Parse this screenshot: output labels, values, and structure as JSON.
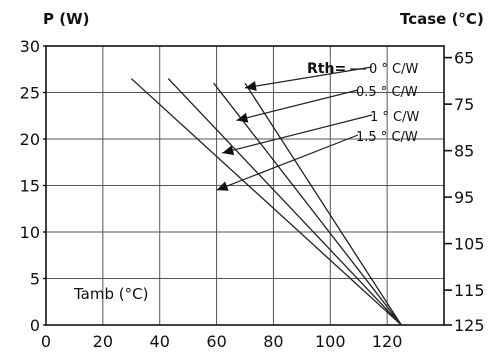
{
  "chart_data": {
    "type": "line",
    "title": "",
    "ylabel": "P (W)",
    "y2label": "Tcase (°C)",
    "xlabel": "Tamb (°C)",
    "xlim": [
      0,
      140
    ],
    "ylim": [
      0,
      30
    ],
    "x_ticks": [
      0,
      20,
      40,
      60,
      80,
      100,
      120
    ],
    "y_ticks": [
      0,
      5,
      10,
      15,
      20,
      25,
      30
    ],
    "y2_ticks": [
      {
        "value": 65,
        "p": 28.75
      },
      {
        "value": 75,
        "p": 23.75
      },
      {
        "value": 85,
        "p": 18.75
      },
      {
        "value": 95,
        "p": 13.75
      },
      {
        "value": 105,
        "p": 8.75
      },
      {
        "value": 115,
        "p": 3.75
      },
      {
        "value": 125,
        "p": 0
      }
    ],
    "grid": true,
    "rth_title": "Rth=",
    "series": [
      {
        "name": "0 ° C/W",
        "points": [
          [
            70,
            26.0
          ],
          [
            125,
            0
          ]
        ],
        "label_at": [
          63,
          25.5
        ],
        "arrow_to": [
          70,
          25.5
        ]
      },
      {
        "name": "0.5 ° C/W",
        "points": [
          [
            59,
            26.0
          ],
          [
            125,
            0
          ]
        ],
        "label_at": [
          64,
          23.0
        ],
        "arrow_to": [
          67,
          22.0
        ]
      },
      {
        "name": "1 ° C/W",
        "points": [
          [
            43,
            26.5
          ],
          [
            125,
            0
          ]
        ],
        "label_at": [
          63,
          19.5
        ],
        "arrow_to": [
          62,
          18.5
        ]
      },
      {
        "name": "1.5 ° C/W",
        "points": [
          [
            30,
            26.5
          ],
          [
            125,
            0
          ]
        ],
        "label_at": [
          63,
          16.5
        ],
        "arrow_to": [
          60,
          14.5
        ]
      }
    ],
    "series_labels": [
      {
        "text": "0 ° C/W"
      },
      {
        "text": "0.5 ° C/W"
      },
      {
        "text": "1 ° C/W"
      },
      {
        "text": "1.5 ° C/W"
      }
    ]
  }
}
